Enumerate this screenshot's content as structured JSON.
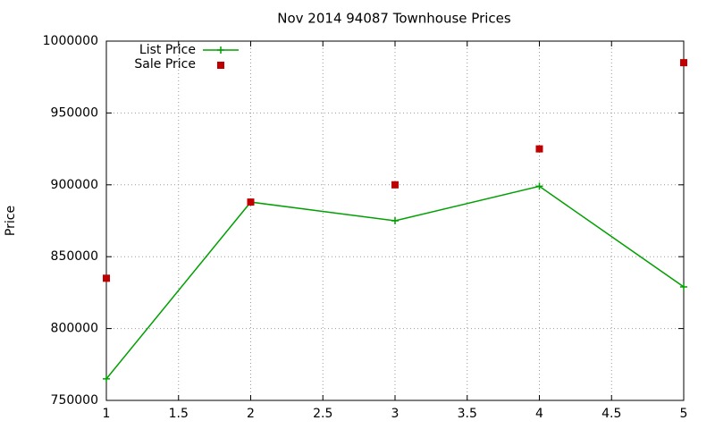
{
  "chart_data": {
    "type": "line",
    "title": "Nov 2014 94087 Townhouse Prices",
    "y_label": "Price",
    "x": [
      1,
      2,
      3,
      4,
      5
    ],
    "series": [
      {
        "name": "List Price",
        "color": "#00a000",
        "style": "linespoints",
        "values": [
          765000,
          888000,
          875000,
          899000,
          829000
        ]
      },
      {
        "name": "Sale Price",
        "color": "#c00000",
        "style": "points",
        "values": [
          835000,
          888000,
          900000,
          925000,
          985000
        ]
      }
    ],
    "xlim": [
      1,
      5
    ],
    "xticks": [
      1,
      1.5,
      2,
      2.5,
      3,
      3.5,
      4,
      4.5,
      5
    ],
    "ylim": [
      750000,
      1000000
    ],
    "yticks": [
      750000,
      800000,
      850000,
      900000,
      950000,
      1000000
    ],
    "grid": true,
    "legend": "top-left"
  }
}
